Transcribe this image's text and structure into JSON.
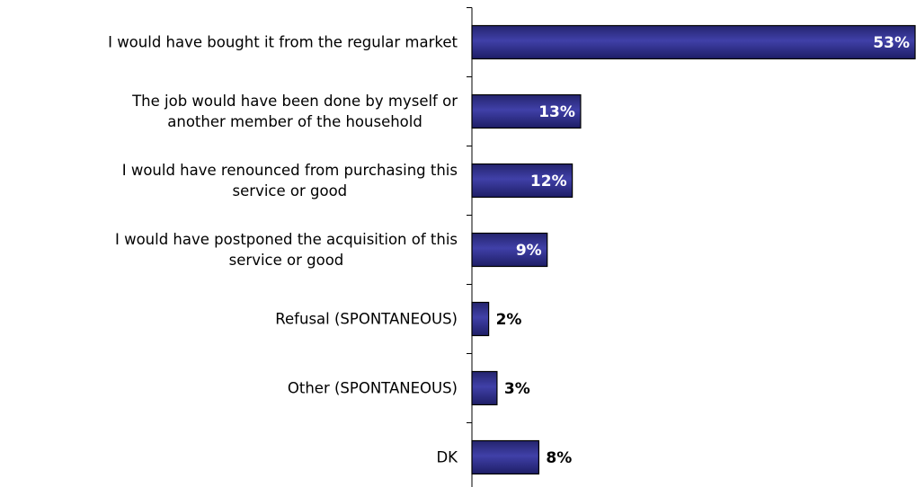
{
  "chart_data": {
    "type": "bar",
    "orientation": "horizontal",
    "categories": [
      "I would have bought it from the regular market",
      "The job would have been done by myself or\nanother member of the household",
      "I would have renounced from purchasing this\nservice or good",
      "I would have postponed the acquisition of this\nservice or good",
      "Refusal (SPONTANEOUS)",
      "Other (SPONTANEOUS)",
      "DK"
    ],
    "values": [
      53,
      13,
      12,
      9,
      2,
      3,
      8
    ],
    "value_labels": [
      "53%",
      "13%",
      "12%",
      "9%",
      "2%",
      "3%",
      "8%"
    ],
    "color": "#2e2e8f"
  }
}
